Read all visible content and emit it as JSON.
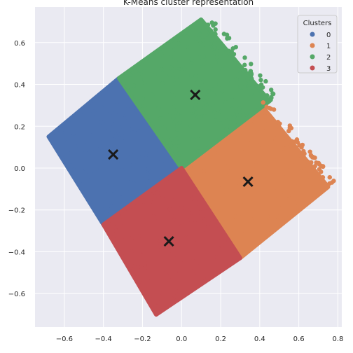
{
  "chart_data": {
    "type": "scatter",
    "title": "K-Means cluster representation",
    "xlabel": "",
    "ylabel": "",
    "xlim": [
      -0.75,
      0.82
    ],
    "ylim": [
      -0.76,
      0.77
    ],
    "xticks": [
      -0.6,
      -0.4,
      -0.2,
      0.0,
      0.2,
      0.4,
      0.6,
      0.8
    ],
    "xtick_labels": [
      "−0.6",
      "−0.4",
      "−0.2",
      "0.0",
      "0.2",
      "0.4",
      "0.6",
      "0.8"
    ],
    "yticks": [
      -0.6,
      -0.4,
      -0.2,
      0.0,
      0.2,
      0.4,
      0.6
    ],
    "ytick_labels": [
      "−0.6",
      "−0.4",
      "−0.2",
      "0.0",
      "0.2",
      "0.4",
      "0.6"
    ],
    "grid": true,
    "background": "#eaeaf2",
    "legend": {
      "title": "Clusters",
      "placement": "top-right",
      "entries": [
        "0",
        "1",
        "2",
        "3"
      ]
    },
    "series": [
      {
        "name": "0",
        "color": "#4c72b0",
        "region": [
          [
            -0.68,
            0.15
          ],
          [
            -0.32,
            0.43
          ],
          [
            0.0,
            0.0
          ],
          [
            -0.4,
            -0.27
          ]
        ]
      },
      {
        "name": "1",
        "color": "#dd8452",
        "region": [
          [
            0.0,
            0.0
          ],
          [
            0.4,
            0.31
          ],
          [
            0.75,
            -0.09
          ],
          [
            0.3,
            -0.43
          ]
        ]
      },
      {
        "name": "2",
        "color": "#55a868",
        "region": [
          [
            -0.32,
            0.43
          ],
          [
            0.1,
            0.71
          ],
          [
            0.45,
            0.32
          ],
          [
            0.0,
            0.0
          ]
        ]
      },
      {
        "name": "3",
        "color": "#c44e52",
        "region": [
          [
            -0.4,
            -0.27
          ],
          [
            0.0,
            0.0
          ],
          [
            0.3,
            -0.43
          ],
          [
            -0.13,
            -0.7
          ]
        ]
      }
    ],
    "centroids": [
      {
        "cluster": "0",
        "x": -0.35,
        "y": 0.065
      },
      {
        "cluster": "1",
        "x": 0.34,
        "y": -0.065
      },
      {
        "cluster": "2",
        "x": 0.07,
        "y": 0.35
      },
      {
        "cluster": "3",
        "x": -0.065,
        "y": -0.35
      }
    ]
  }
}
